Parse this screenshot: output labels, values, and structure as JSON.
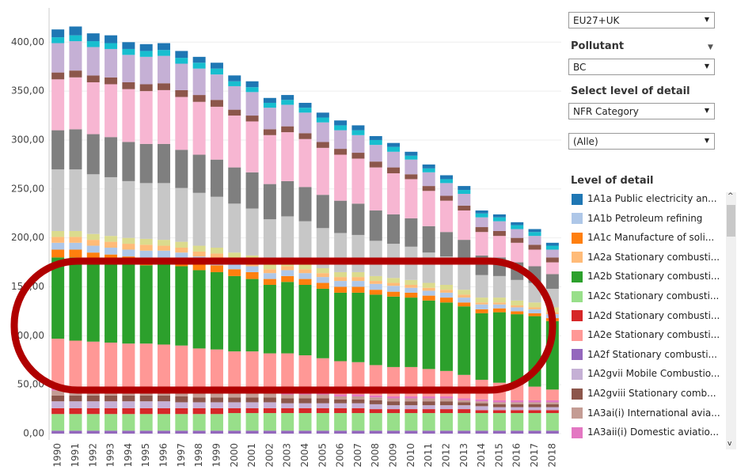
{
  "chart_data": {
    "type": "stacked_bar",
    "categories": [
      "1990",
      "1991",
      "1992",
      "1993",
      "1994",
      "1995",
      "1996",
      "1997",
      "1998",
      "1999",
      "2000",
      "2001",
      "2002",
      "2003",
      "2004",
      "2005",
      "2006",
      "2007",
      "2008",
      "2009",
      "2010",
      "2011",
      "2012",
      "2013",
      "2014",
      "2015",
      "2016",
      "2017",
      "2018"
    ],
    "ylim": [
      0,
      435
    ],
    "yticks": [
      {
        "value": 0,
        "label": "0,00"
      },
      {
        "value": 50,
        "label": "50,00"
      },
      {
        "value": 100,
        "label": "100,00"
      },
      {
        "value": 150,
        "label": "150,00"
      },
      {
        "value": 200,
        "label": "200,00"
      },
      {
        "value": 250,
        "label": "250,00"
      },
      {
        "value": 300,
        "label": "300,00"
      },
      {
        "value": 350,
        "label": "350,00"
      },
      {
        "value": 400,
        "label": "400,00"
      }
    ],
    "grid": true,
    "series": [
      {
        "color": "#9467bd",
        "values": [
          3,
          3,
          3,
          3,
          3,
          3,
          3,
          3,
          3,
          3,
          3,
          3,
          3,
          3,
          3,
          3,
          3,
          3,
          3,
          3,
          3,
          3,
          3,
          3,
          3,
          3,
          3,
          3,
          3
        ]
      },
      {
        "color": "#98df8a",
        "values": [
          17,
          17,
          17,
          17,
          17,
          17,
          17,
          17,
          17,
          17,
          18,
          18,
          18,
          18,
          18,
          18,
          18,
          18,
          18,
          18,
          18,
          18,
          18,
          18,
          18,
          18,
          18,
          18,
          18
        ]
      },
      {
        "color": "#d62728",
        "values": [
          6,
          6,
          6,
          6,
          6,
          6,
          6,
          6,
          6,
          6,
          5,
          5,
          5,
          5,
          5,
          5,
          5,
          5,
          4,
          4,
          4,
          4,
          4,
          4,
          3,
          3,
          3,
          3,
          3
        ]
      },
      {
        "color": "#c5b0d5",
        "values": [
          7,
          7,
          7,
          7,
          7,
          7,
          7,
          6,
          6,
          6,
          6,
          6,
          6,
          5,
          5,
          5,
          5,
          5,
          5,
          4,
          4,
          4,
          4,
          4,
          4,
          3,
          3,
          3,
          3
        ]
      },
      {
        "color": "#8c564b",
        "values": [
          6,
          6,
          6,
          6,
          6,
          6,
          6,
          6,
          5,
          5,
          5,
          5,
          5,
          5,
          5,
          5,
          4,
          4,
          4,
          4,
          4,
          4,
          4,
          3,
          3,
          3,
          3,
          3,
          3
        ]
      },
      {
        "color": "#c49c94",
        "values": [
          5,
          5,
          5,
          5,
          5,
          5,
          5,
          5,
          4,
          4,
          4,
          4,
          4,
          4,
          4,
          4,
          3,
          3,
          3,
          3,
          3,
          3,
          3,
          2,
          2,
          2,
          2,
          2,
          2
        ]
      },
      {
        "color": "#e377c2",
        "values": [
          3,
          3,
          3,
          3,
          3,
          3,
          3,
          3,
          3,
          3,
          3,
          3,
          3,
          3,
          3,
          2,
          2,
          2,
          2,
          2,
          2,
          2,
          2,
          2,
          2,
          2,
          2,
          2,
          2
        ]
      },
      {
        "color": "#ff9896",
        "values": [
          50,
          48,
          47,
          46,
          45,
          45,
          44,
          44,
          43,
          42,
          40,
          40,
          38,
          39,
          37,
          35,
          34,
          33,
          31,
          30,
          30,
          28,
          26,
          24,
          20,
          18,
          16,
          14,
          11
        ]
      },
      {
        "color": "#2ca02c",
        "values": [
          83,
          85,
          83,
          82,
          81,
          80,
          82,
          81,
          80,
          79,
          77,
          74,
          70,
          73,
          72,
          71,
          70,
          71,
          72,
          72,
          71,
          70,
          70,
          70,
          68,
          72,
          72,
          72,
          70
        ]
      },
      {
        "color": "#ff7f0e",
        "values": [
          8,
          8,
          8,
          8,
          8,
          8,
          7,
          7,
          7,
          7,
          7,
          7,
          6,
          6,
          6,
          6,
          6,
          6,
          5,
          5,
          5,
          5,
          5,
          4,
          4,
          4,
          3,
          3,
          3
        ]
      },
      {
        "color": "#aec7e8",
        "values": [
          7,
          7,
          7,
          7,
          7,
          7,
          7,
          7,
          7,
          7,
          6,
          6,
          6,
          6,
          6,
          6,
          6,
          6,
          6,
          6,
          5,
          5,
          5,
          5,
          5,
          4,
          4,
          4,
          4
        ]
      },
      {
        "color": "#ffbb78",
        "values": [
          6,
          6,
          6,
          6,
          6,
          6,
          5,
          5,
          5,
          5,
          5,
          5,
          4,
          4,
          4,
          4,
          4,
          4,
          3,
          3,
          3,
          3,
          3,
          3,
          2,
          2,
          2,
          2,
          2
        ]
      },
      {
        "color": "#dbdb8d",
        "values": [
          6,
          6,
          6,
          6,
          6,
          6,
          6,
          6,
          6,
          6,
          6,
          6,
          6,
          6,
          6,
          5,
          5,
          5,
          5,
          5,
          5,
          5,
          5,
          5,
          5,
          5,
          5,
          5,
          5
        ]
      },
      {
        "color": "#c7c7c7",
        "values": [
          63,
          63,
          61,
          60,
          58,
          57,
          58,
          55,
          54,
          52,
          50,
          48,
          45,
          45,
          43,
          41,
          40,
          38,
          36,
          35,
          34,
          31,
          29,
          27,
          23,
          22,
          21,
          20,
          19
        ]
      },
      {
        "color": "#7f7f7f",
        "values": [
          40,
          41,
          41,
          41,
          40,
          40,
          40,
          39,
          39,
          38,
          37,
          37,
          36,
          36,
          35,
          34,
          33,
          32,
          31,
          30,
          29,
          27,
          25,
          24,
          20,
          19,
          18,
          17,
          15
        ]
      },
      {
        "color": "#f7b6d2",
        "values": [
          52,
          53,
          53,
          54,
          54,
          54,
          55,
          54,
          54,
          54,
          53,
          52,
          50,
          50,
          49,
          48,
          47,
          46,
          44,
          42,
          40,
          36,
          32,
          30,
          24,
          22,
          20,
          17,
          12
        ]
      },
      {
        "color": "#8c564b",
        "values": [
          7,
          7,
          7,
          7,
          7,
          7,
          7,
          7,
          7,
          7,
          6,
          6,
          6,
          6,
          6,
          6,
          6,
          6,
          6,
          6,
          5,
          5,
          5,
          5,
          5,
          5,
          5,
          5,
          5
        ]
      },
      {
        "color": "#c5b0d5",
        "values": [
          30,
          30,
          29,
          29,
          28,
          28,
          28,
          27,
          27,
          26,
          24,
          24,
          22,
          22,
          21,
          20,
          19,
          18,
          17,
          16,
          15,
          14,
          13,
          12,
          10,
          10,
          9,
          9,
          8
        ]
      },
      {
        "color": "#17becf",
        "values": [
          6,
          6,
          6,
          6,
          6,
          6,
          6,
          6,
          6,
          6,
          5,
          5,
          5,
          5,
          5,
          5,
          5,
          5,
          5,
          5,
          4,
          4,
          4,
          4,
          4,
          4,
          4,
          4,
          4
        ]
      },
      {
        "color": "#1f77b4",
        "values": [
          8,
          9,
          8,
          8,
          7,
          7,
          7,
          7,
          6,
          6,
          6,
          6,
          5,
          5,
          5,
          5,
          5,
          5,
          4,
          4,
          4,
          4,
          4,
          4,
          3,
          3,
          3,
          3,
          3
        ]
      }
    ]
  },
  "sidebar": {
    "region": "EU27+UK",
    "pollutant_label": "Pollutant",
    "pollutant": "BC",
    "detail_label": "Select level of detail",
    "detail": "NFR Category",
    "filter": "(Alle)",
    "legend": {
      "title": "Level of detail",
      "items": [
        {
          "label": "1A1a Public electricity an...",
          "color": "#1f77b4"
        },
        {
          "label": "1A1b Petroleum refining",
          "color": "#aec7e8"
        },
        {
          "label": "1A1c Manufacture of soli...",
          "color": "#ff7f0e"
        },
        {
          "label": "1A2a Stationary combusti...",
          "color": "#ffbb78"
        },
        {
          "label": "1A2b Stationary combusti...",
          "color": "#2ca02c"
        },
        {
          "label": "1A2c Stationary combusti...",
          "color": "#98df8a"
        },
        {
          "label": "1A2d Stationary combusti...",
          "color": "#d62728"
        },
        {
          "label": "1A2e Stationary combusti...",
          "color": "#ff9896"
        },
        {
          "label": "1A2f Stationary combusti...",
          "color": "#9467bd"
        },
        {
          "label": "1A2gvii Mobile Combustio...",
          "color": "#c5b0d5"
        },
        {
          "label": "1A2gviii Stationary comb...",
          "color": "#8c564b"
        },
        {
          "label": "1A3ai(i) International avia...",
          "color": "#c49c94"
        },
        {
          "label": "1A3aii(i) Domestic aviatio...",
          "color": "#e377c2"
        }
      ]
    }
  }
}
